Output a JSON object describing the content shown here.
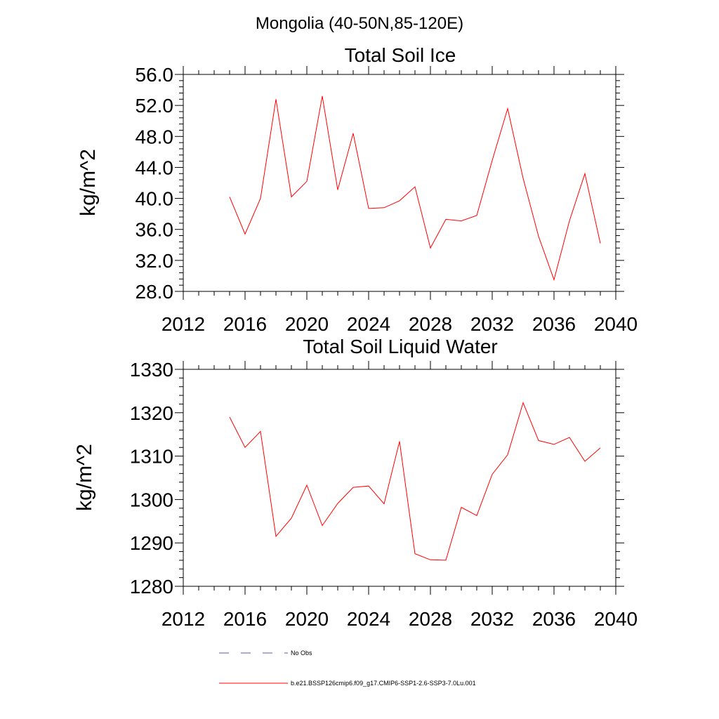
{
  "figure": {
    "title": "Mongolia (40-50N,85-120E)"
  },
  "legend": {
    "entries": [
      {
        "label": "No Obs",
        "style": "dashed",
        "color": "#5b5b9a"
      },
      {
        "label": "b.e21.BSSP126cmip6.f09_g17.CMIP6-SSP1-2.6-SSP3-7.0Lu.001",
        "style": "solid",
        "color": "#ff0000"
      }
    ]
  },
  "chart_data": [
    {
      "type": "line",
      "title": "Total Soil Ice",
      "xlabel": "",
      "ylabel": "kg/m^2",
      "xlim": [
        2012,
        2040
      ],
      "ylim": [
        28,
        56
      ],
      "xticks": [
        2012,
        2016,
        2020,
        2024,
        2028,
        2032,
        2036,
        2040
      ],
      "xtick_labels": [
        "2012",
        "2016",
        "2020",
        "2024",
        "2028",
        "2032",
        "2036",
        "2040"
      ],
      "yticks": [
        28,
        32,
        36,
        40,
        44,
        48,
        52,
        56
      ],
      "ytick_labels": [
        "28.0",
        "32.0",
        "36.0",
        "40.0",
        "44.0",
        "48.0",
        "52.0",
        "56.0"
      ],
      "grid": false,
      "series": [
        {
          "color": "#ff0000",
          "x": [
            2015,
            2016,
            2017,
            2018,
            2019,
            2020,
            2021,
            2022,
            2023,
            2024,
            2025,
            2026,
            2027,
            2028,
            2029,
            2030,
            2031,
            2032,
            2033,
            2034,
            2035,
            2036,
            2037,
            2038,
            2039
          ],
          "y": [
            40.2,
            35.4,
            40.0,
            52.8,
            40.2,
            42.2,
            53.2,
            41.1,
            48.4,
            38.7,
            38.8,
            39.7,
            41.5,
            33.6,
            37.3,
            37.1,
            37.8,
            44.9,
            51.6,
            42.6,
            35.1,
            29.5,
            37.1,
            43.2,
            34.2
          ]
        }
      ]
    },
    {
      "type": "line",
      "title": "Total Soil Liquid Water",
      "xlabel": "",
      "ylabel": "kg/m^2",
      "xlim": [
        2012,
        2040
      ],
      "ylim": [
        1280,
        1330
      ],
      "xticks": [
        2012,
        2016,
        2020,
        2024,
        2028,
        2032,
        2036,
        2040
      ],
      "xtick_labels": [
        "2012",
        "2016",
        "2020",
        "2024",
        "2028",
        "2032",
        "2036",
        "2040"
      ],
      "yticks": [
        1280,
        1290,
        1300,
        1310,
        1320,
        1330
      ],
      "ytick_labels": [
        "1280",
        "1290",
        "1300",
        "1310",
        "1320",
        "1330"
      ],
      "grid": false,
      "series": [
        {
          "color": "#ff0000",
          "x": [
            2015,
            2016,
            2017,
            2018,
            2019,
            2020,
            2021,
            2022,
            2023,
            2024,
            2025,
            2026,
            2027,
            2028,
            2029,
            2030,
            2031,
            2032,
            2033,
            2034,
            2035,
            2036,
            2037,
            2038,
            2039
          ],
          "y": [
            1319.0,
            1312.0,
            1315.7,
            1291.5,
            1295.7,
            1303.3,
            1294.0,
            1299.1,
            1302.8,
            1303.1,
            1299.0,
            1313.4,
            1287.5,
            1286.1,
            1286.0,
            1298.2,
            1296.3,
            1305.8,
            1310.3,
            1322.3,
            1313.6,
            1312.7,
            1314.3,
            1308.8,
            1311.9
          ]
        }
      ]
    }
  ]
}
